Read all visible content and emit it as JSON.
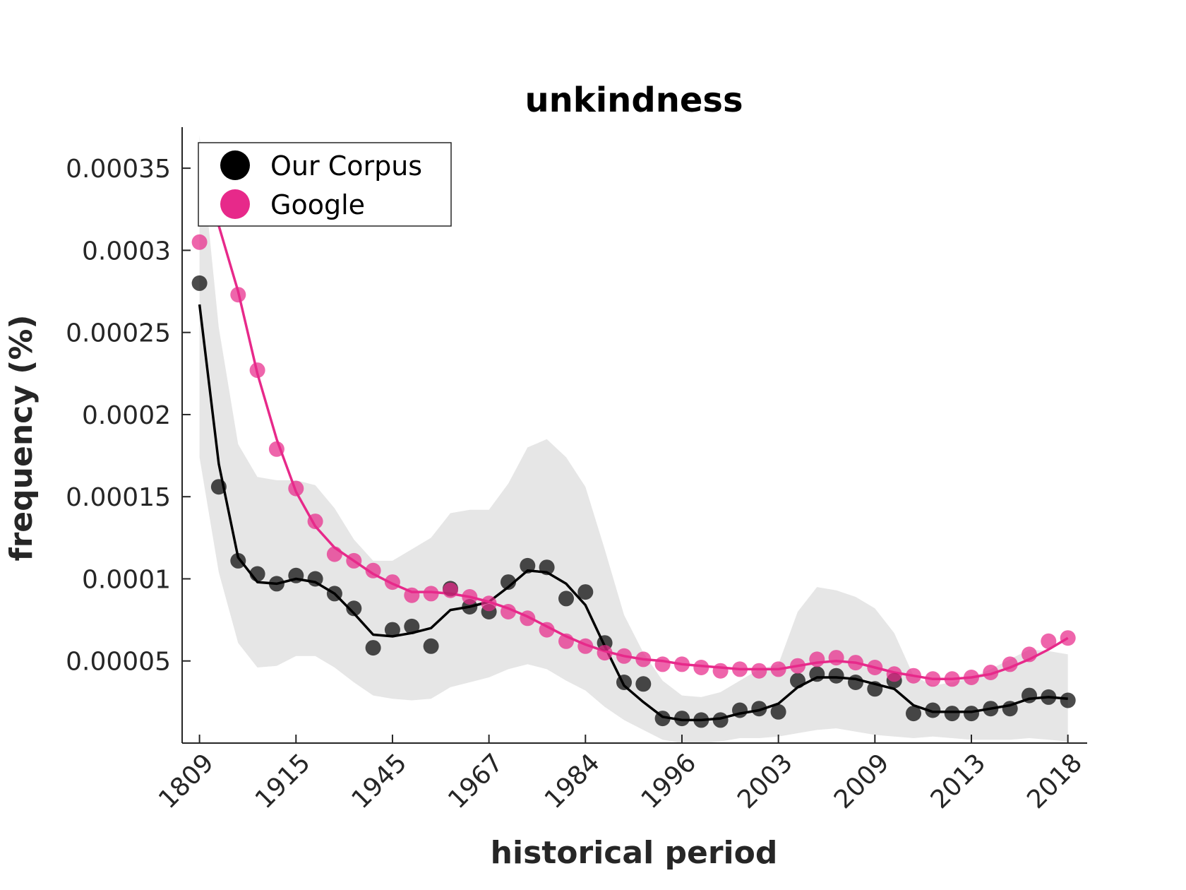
{
  "chart_data": {
    "type": "scatter",
    "title": "unkindness",
    "xlabel": "historical period",
    "ylabel": "frequency (%)",
    "x_tick_labels": [
      "1809",
      "1915",
      "1945",
      "1967",
      "1984",
      "1996",
      "2003",
      "2009",
      "2013",
      "2018"
    ],
    "x_tick_positions": [
      1,
      6,
      11,
      16,
      21,
      26,
      31,
      36,
      41,
      46
    ],
    "y_ticks": [
      5e-05,
      0.0001,
      0.00015,
      0.0002,
      0.00025,
      0.0003,
      0.00035
    ],
    "y_tick_labels": [
      "0.00005",
      "0.0001",
      "0.00015",
      "0.0002",
      "0.00025",
      "0.0003",
      "0.00035"
    ],
    "xlim": [
      0.1,
      47
    ],
    "ylim": [
      0,
      0.000375
    ],
    "grid": false,
    "legend_position": "top-left",
    "colors": {
      "our_corpus": "#000000",
      "google": "#e7298a",
      "band": "#e6e6e6"
    },
    "series": [
      {
        "name": "Our Corpus",
        "x": [
          1,
          2,
          3,
          4,
          5,
          6,
          7,
          8,
          9,
          10,
          11,
          12,
          13,
          14,
          15,
          16,
          17,
          18,
          19,
          20,
          21,
          22,
          23,
          24,
          25,
          26,
          27,
          28,
          29,
          30,
          31,
          32,
          33,
          34,
          35,
          36,
          37,
          38,
          39,
          40,
          41,
          42,
          43,
          44,
          45,
          46
        ],
        "points": [
          0.00028,
          0.000156,
          0.000111,
          0.000103,
          9.7e-05,
          0.000102,
          0.0001,
          9.1e-05,
          8.2e-05,
          5.8e-05,
          6.9e-05,
          7.1e-05,
          5.9e-05,
          9.4e-05,
          8.3e-05,
          8e-05,
          9.8e-05,
          0.000108,
          0.000107,
          8.8e-05,
          9.2e-05,
          6.1e-05,
          3.7e-05,
          3.6e-05,
          1.5e-05,
          1.5e-05,
          1.4e-05,
          1.4e-05,
          2e-05,
          2.1e-05,
          1.9e-05,
          3.8e-05,
          4.2e-05,
          4.1e-05,
          3.7e-05,
          3.3e-05,
          3.8e-05,
          1.8e-05,
          2e-05,
          1.8e-05,
          1.8e-05,
          2.1e-05,
          2.1e-05,
          2.9e-05,
          2.8e-05,
          2.6e-05
        ],
        "trend": [
          0.000267,
          0.00017,
          0.000113,
          9.8e-05,
          9.7e-05,
          0.0001,
          9.8e-05,
          9.1e-05,
          7.9e-05,
          6.6e-05,
          6.5e-05,
          6.7e-05,
          7e-05,
          8.1e-05,
          8.3e-05,
          8.6e-05,
          9.5e-05,
          0.000105,
          0.000104,
          9.7e-05,
          8.4e-05,
          5.9e-05,
          3.5e-05,
          2.5e-05,
          1.6e-05,
          1.4e-05,
          1.4e-05,
          1.5e-05,
          1.8e-05,
          2e-05,
          2.4e-05,
          3.4e-05,
          4e-05,
          4e-05,
          3.9e-05,
          3.6e-05,
          3.3e-05,
          2.3e-05,
          1.9e-05,
          1.9e-05,
          1.9e-05,
          2.1e-05,
          2.3e-05,
          2.7e-05,
          2.8e-05,
          2.7e-05
        ],
        "band_upper": [
          0.00037,
          0.000253,
          0.000182,
          0.000162,
          0.00016,
          0.00016,
          0.000157,
          0.000143,
          0.000124,
          0.000111,
          0.000111,
          0.000118,
          0.000125,
          0.00014,
          0.000142,
          0.000142,
          0.000158,
          0.00018,
          0.000185,
          0.000174,
          0.000156,
          0.000118,
          7.8e-05,
          5.5e-05,
          3.8e-05,
          2.9e-05,
          2.8e-05,
          3.1e-05,
          3.8e-05,
          4.5e-05,
          4.8e-05,
          8e-05,
          9.5e-05,
          9.3e-05,
          8.9e-05,
          8.2e-05,
          6.7e-05,
          4.1e-05,
          3.5e-05,
          3.7e-05,
          4e-05,
          4.5e-05,
          5.1e-05,
          5.7e-05,
          5.6e-05,
          5.4e-05
        ],
        "band_lower": [
          0.000174,
          0.000104,
          6.1e-05,
          4.6e-05,
          4.7e-05,
          5.3e-05,
          5.3e-05,
          4.6e-05,
          3.7e-05,
          2.9e-05,
          2.7e-05,
          2.6e-05,
          2.7e-05,
          3.4e-05,
          3.7e-05,
          4e-05,
          4.5e-05,
          4.8e-05,
          4.5e-05,
          3.8e-05,
          3.2e-05,
          2.2e-05,
          1.4e-05,
          8e-06,
          2e-06,
          0.0,
          0.0,
          1e-06,
          3e-06,
          3e-06,
          4e-06,
          6e-06,
          8e-06,
          9e-06,
          7e-06,
          5e-06,
          4e-06,
          3e-06,
          4e-06,
          3e-06,
          2e-06,
          2e-06,
          2e-06,
          3e-06,
          2e-06,
          1e-06
        ]
      },
      {
        "name": "Google",
        "x": [
          1,
          2,
          3,
          4,
          5,
          6,
          7,
          8,
          9,
          10,
          11,
          12,
          13,
          14,
          15,
          16,
          17,
          18,
          19,
          20,
          21,
          22,
          23,
          24,
          25,
          26,
          27,
          28,
          29,
          30,
          31,
          32,
          33,
          34,
          35,
          36,
          37,
          38,
          39,
          40,
          41,
          42,
          43,
          44,
          45,
          46
        ],
        "points": [
          0.000305,
          0.000325,
          0.000273,
          0.000227,
          0.000179,
          0.000155,
          0.000135,
          0.000115,
          0.000111,
          0.000105,
          9.8e-05,
          9e-05,
          9.1e-05,
          9.3e-05,
          8.9e-05,
          8.5e-05,
          8e-05,
          7.6e-05,
          6.9e-05,
          6.2e-05,
          5.9e-05,
          5.5e-05,
          5.3e-05,
          5.1e-05,
          4.8e-05,
          4.8e-05,
          4.6e-05,
          4.4e-05,
          4.5e-05,
          4.4e-05,
          4.5e-05,
          4.7e-05,
          5.1e-05,
          5.2e-05,
          4.9e-05,
          4.6e-05,
          4.2e-05,
          4.1e-05,
          3.9e-05,
          3.9e-05,
          4e-05,
          4.3e-05,
          4.8e-05,
          5.4e-05,
          6.2e-05,
          6.4e-05
        ],
        "trend": [
          0.00036,
          0.000315,
          0.000275,
          0.000225,
          0.000185,
          0.000153,
          0.000132,
          0.000119,
          0.000111,
          0.000103,
          9.7e-05,
          9.2e-05,
          9.2e-05,
          9.1e-05,
          8.9e-05,
          8.6e-05,
          8.2e-05,
          7.7e-05,
          7.1e-05,
          6.5e-05,
          6e-05,
          5.6e-05,
          5.3e-05,
          5.1e-05,
          5e-05,
          4.8e-05,
          4.7e-05,
          4.6e-05,
          4.5e-05,
          4.5e-05,
          4.5e-05,
          4.7e-05,
          4.9e-05,
          5e-05,
          4.9e-05,
          4.6e-05,
          4.3e-05,
          4.1e-05,
          3.9e-05,
          3.9e-05,
          4e-05,
          4.2e-05,
          4.6e-05,
          5.1e-05,
          5.7e-05,
          6.4e-05
        ]
      }
    ]
  }
}
